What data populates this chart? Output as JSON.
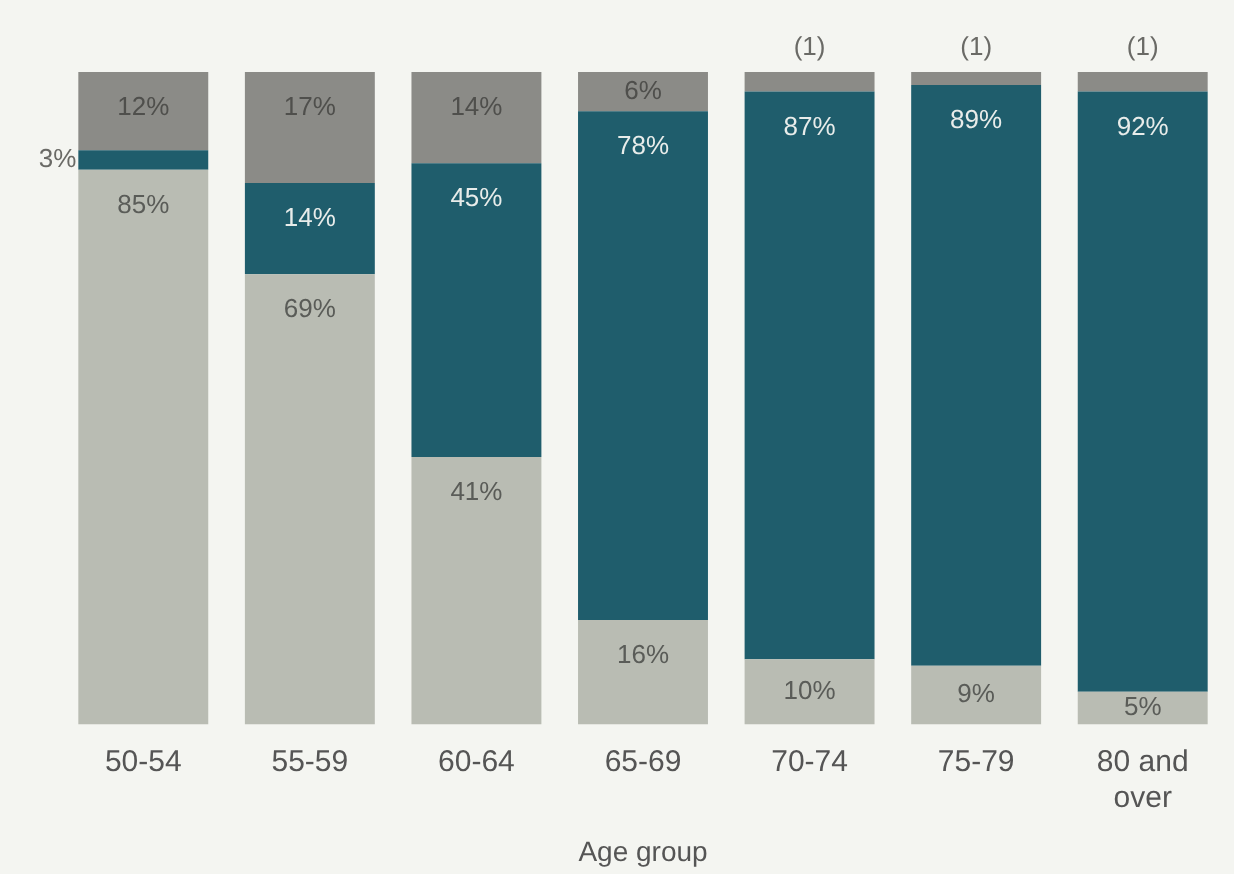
{
  "chart_data": {
    "type": "bar",
    "stacked": true,
    "xlabel": "Age group",
    "categories": [
      "50-54",
      "55-59",
      "60-64",
      "65-69",
      "70-74",
      "75-79",
      "80 and over"
    ],
    "ylim": [
      0,
      100
    ],
    "annotations": [
      {
        "text": "(1)",
        "x": "70-74",
        "y": 100
      },
      {
        "text": "(1)",
        "x": "75-79",
        "y": 100
      },
      {
        "text": "(1)",
        "x": "80 and over",
        "y": 100
      }
    ],
    "tick_labels": "x",
    "grid": false,
    "legend": false,
    "series": [
      {
        "color": "#b9bcb3",
        "values": [
          85,
          69,
          41,
          16,
          10,
          9,
          5
        ],
        "value_labels": [
          "85%",
          "69%",
          "41%",
          "16%",
          "10%",
          "9%",
          "5%"
        ]
      },
      {
        "color": "#1f5d6c",
        "values": [
          3,
          14,
          45,
          78,
          87,
          89,
          92
        ],
        "value_labels": [
          "3%",
          "14%",
          "45%",
          "78%",
          "87%",
          "89%",
          "92%"
        ]
      },
      {
        "color": "#8b8b87",
        "values": [
          12,
          17,
          14,
          6,
          3,
          2,
          3
        ],
        "value_labels": [
          "12%",
          "17%",
          "14%",
          "6%",
          null,
          null,
          null
        ]
      }
    ]
  }
}
